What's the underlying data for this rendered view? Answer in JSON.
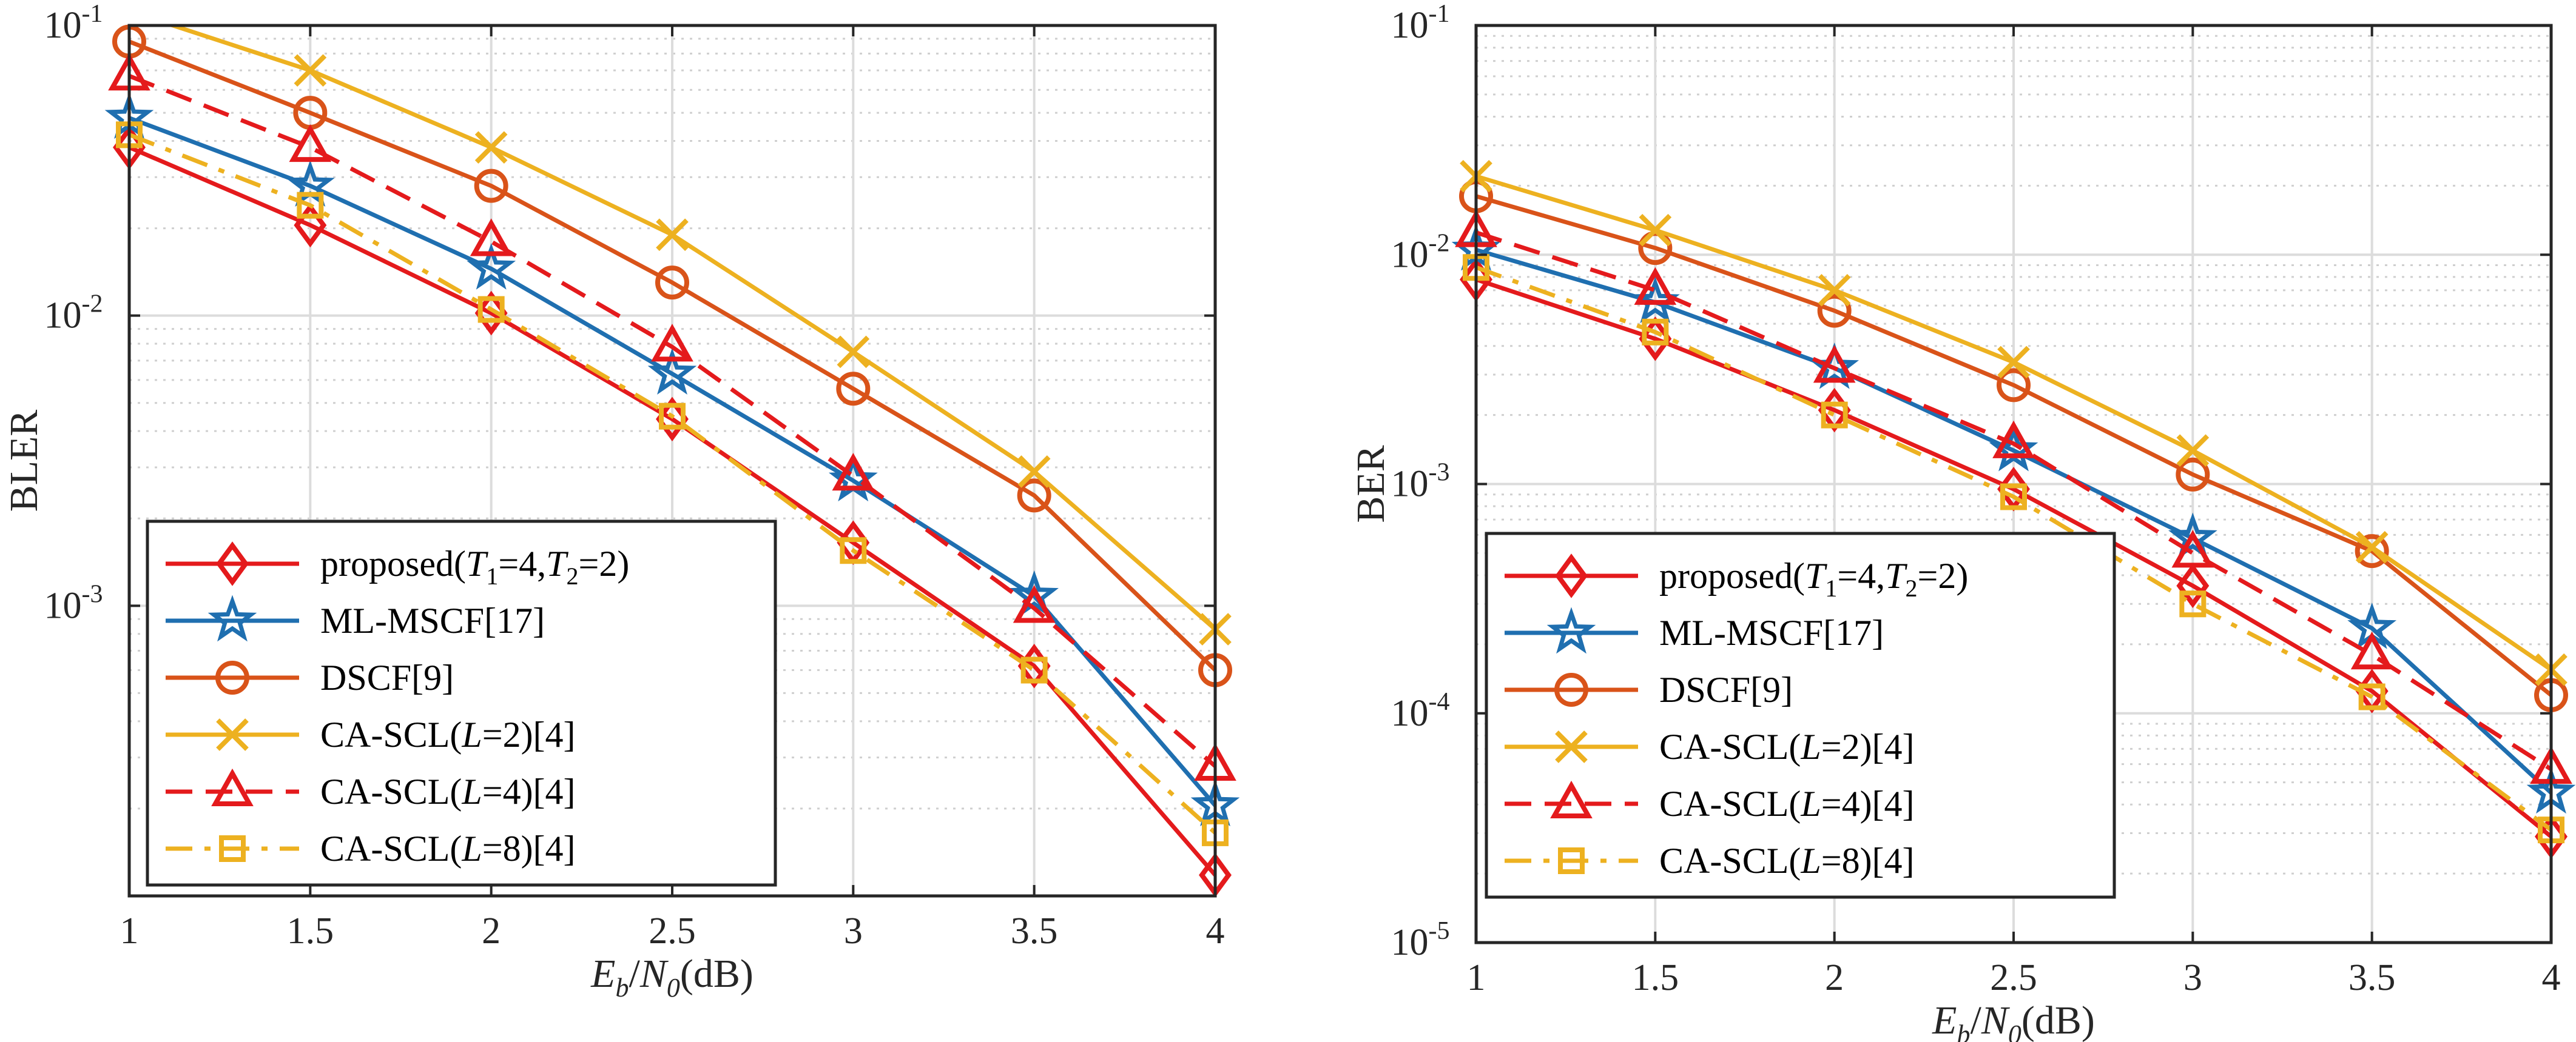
{
  "chart_data": [
    {
      "type": "line",
      "ylabel": "BLER",
      "xlabel": {
        "E": "E",
        "b": "b",
        "slash": "/",
        "N": "N",
        "zero": "0",
        "unit": "(dB)"
      },
      "xlim": [
        1,
        4
      ],
      "ylim": [
        0.0001,
        0.1
      ],
      "yscale": "log",
      "grid": true,
      "legend_position": "bottom-left",
      "x_ticks": [
        "1",
        "1.5",
        "2",
        "2.5",
        "3",
        "3.5",
        "4"
      ],
      "y_ticks": [
        {
          "value": 0.1,
          "base": "10",
          "exp": "-1"
        },
        {
          "value": 0.01,
          "base": "10",
          "exp": "-2"
        },
        {
          "value": 0.001,
          "base": "10",
          "exp": "-3"
        }
      ],
      "x": [
        1,
        1.5,
        2,
        2.5,
        3,
        3.5,
        4
      ],
      "series": [
        {
          "name": "proposed(T1=4,T2=2)",
          "values": [
            0.038,
            0.0205,
            0.0102,
            0.0044,
            0.00165,
            0.00062,
            0.000118
          ]
        },
        {
          "name": "ML-MSCF[17]",
          "values": [
            0.048,
            0.028,
            0.0145,
            0.0063,
            0.0027,
            0.00108,
            0.000205
          ]
        },
        {
          "name": "DSCF[9]",
          "values": [
            0.088,
            0.05,
            0.028,
            0.013,
            0.0056,
            0.0024,
            0.0006
          ]
        },
        {
          "name": "CA-SCL(L=2)[4]",
          "values": [
            0.112,
            0.07,
            0.038,
            0.019,
            0.0075,
            0.0029,
            0.00083
          ]
        },
        {
          "name": "CA-SCL(L=4)[4]",
          "values": [
            0.067,
            0.038,
            0.018,
            0.0078,
            0.0028,
            0.00098,
            0.00028
          ]
        },
        {
          "name": "CA-SCL(L=8)[4]",
          "values": [
            0.042,
            0.024,
            0.0105,
            0.0045,
            0.00155,
            0.0006,
            0.000165
          ]
        }
      ]
    },
    {
      "type": "line",
      "ylabel": "BER",
      "xlabel": {
        "E": "E",
        "b": "b",
        "slash": "/",
        "N": "N",
        "zero": "0",
        "unit": "(dB)"
      },
      "xlim": [
        1,
        4
      ],
      "ylim": [
        1e-05,
        0.1
      ],
      "yscale": "log",
      "grid": true,
      "legend_position": "bottom-left",
      "x_ticks": [
        "1",
        "1.5",
        "2",
        "2.5",
        "3",
        "3.5",
        "4"
      ],
      "y_ticks": [
        {
          "value": 0.1,
          "base": "10",
          "exp": "-1"
        },
        {
          "value": 0.01,
          "base": "10",
          "exp": "-2"
        },
        {
          "value": 0.001,
          "base": "10",
          "exp": "-3"
        },
        {
          "value": 0.0001,
          "base": "10",
          "exp": "-4"
        },
        {
          "value": 1e-05,
          "base": "10",
          "exp": "-5"
        }
      ],
      "x": [
        1,
        1.5,
        2,
        2.5,
        3,
        3.5,
        4
      ],
      "series": [
        {
          "name": "proposed(T1=4,T2=2)",
          "values": [
            0.0078,
            0.0043,
            0.0021,
            0.00095,
            0.00036,
            0.000125,
            2.9e-05
          ]
        },
        {
          "name": "ML-MSCF[17]",
          "values": [
            0.0105,
            0.0062,
            0.0032,
            0.0014,
            0.00058,
            0.000235,
            4.5e-05
          ]
        },
        {
          "name": "DSCF[9]",
          "values": [
            0.018,
            0.0107,
            0.0057,
            0.0027,
            0.0011,
            0.00051,
            0.00012
          ]
        },
        {
          "name": "CA-SCL(L=2)[4]",
          "values": [
            0.022,
            0.0128,
            0.007,
            0.0034,
            0.0014,
            0.00053,
            0.000155
          ]
        },
        {
          "name": "CA-SCL(L=4)[4]",
          "values": [
            0.0125,
            0.007,
            0.0032,
            0.0015,
            0.0005,
            0.00018,
            5.7e-05
          ]
        },
        {
          "name": "CA-SCL(L=8)[4]",
          "values": [
            0.0088,
            0.0046,
            0.002,
            0.00088,
            0.0003,
            0.000118,
            3.1e-05
          ]
        }
      ]
    }
  ],
  "legend": [
    {
      "id": "proposed",
      "parts": [
        "proposed(",
        "T",
        "1",
        "=4,",
        "T",
        "2",
        "=2)"
      ],
      "color": "#E41A1C",
      "dash": "none",
      "marker": "diamond"
    },
    {
      "id": "mlmscf",
      "parts": [
        "ML-MSCF[17]"
      ],
      "color": "#1F6FB0",
      "dash": "none",
      "marker": "star"
    },
    {
      "id": "dscf",
      "parts": [
        "DSCF[9]"
      ],
      "color": "#D95319",
      "dash": "none",
      "marker": "circle"
    },
    {
      "id": "cascl2",
      "parts": [
        "CA-SCL(",
        "L",
        "=2)[4]"
      ],
      "color": "#EDB120",
      "dash": "none",
      "marker": "x"
    },
    {
      "id": "cascl4",
      "parts": [
        "CA-SCL(",
        "L",
        "=4)[4]"
      ],
      "color": "#E41A1C",
      "dash": "dashed",
      "marker": "triangle"
    },
    {
      "id": "cascl8",
      "parts": [
        "CA-SCL(",
        "L",
        "=8)[4]"
      ],
      "color": "#EDB120",
      "dash": "dashdot",
      "marker": "square"
    }
  ]
}
